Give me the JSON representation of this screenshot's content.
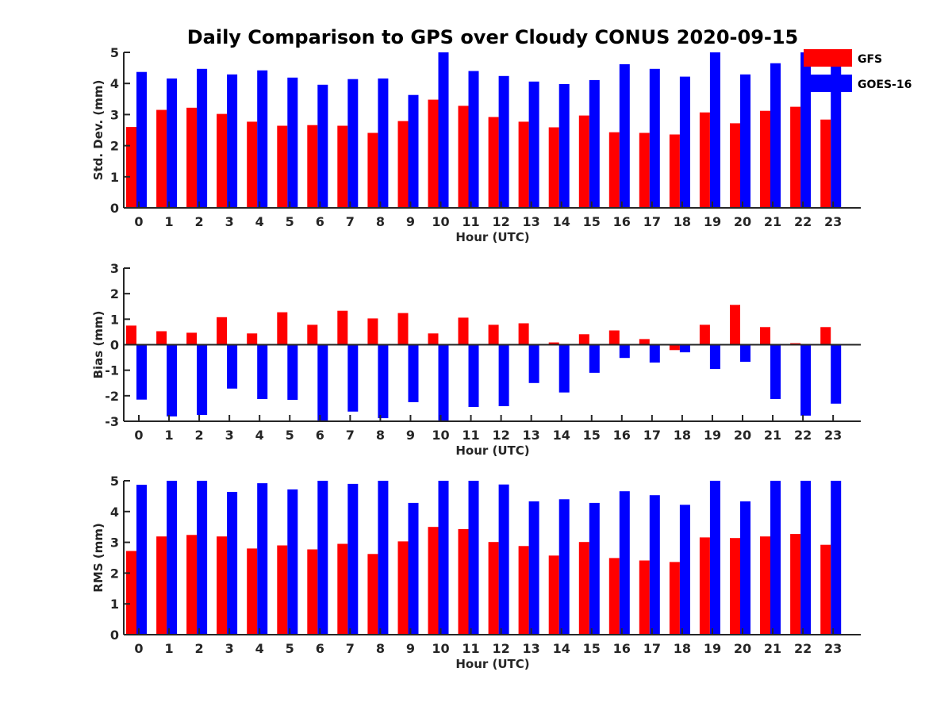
{
  "chart_data": {
    "title": "Daily Comparison to GPS over Cloudy CONUS 2020-09-15",
    "type": "bar",
    "categories": [
      "0",
      "1",
      "2",
      "3",
      "4",
      "5",
      "6",
      "7",
      "8",
      "9",
      "10",
      "11",
      "12",
      "13",
      "14",
      "15",
      "16",
      "17",
      "18",
      "19",
      "20",
      "21",
      "22",
      "23"
    ],
    "legend": {
      "placement": "top-right",
      "entries": [
        {
          "name": "GFS",
          "color": "#ff0000"
        },
        {
          "name": "GOES-16",
          "color": "#0000ff"
        }
      ]
    },
    "panels": [
      {
        "ylabel": "Std. Dev. (mm)",
        "xlabel": "Hour (UTC)",
        "ylim": [
          0,
          5
        ],
        "yticks": [
          0,
          1,
          2,
          3,
          4,
          5
        ],
        "series": [
          {
            "name": "GFS",
            "color": "#ff0000",
            "values": [
              2.6,
              3.15,
              3.22,
              3.02,
              2.77,
              2.64,
              2.66,
              2.64,
              2.41,
              2.79,
              3.48,
              3.28,
              2.92,
              2.77,
              2.59,
              2.97,
              2.43,
              2.41,
              2.36,
              3.07,
              2.72,
              3.12,
              3.25,
              2.84
            ]
          },
          {
            "name": "GOES-16",
            "color": "#0000ff",
            "values": [
              4.37,
              4.16,
              4.47,
              4.29,
              4.42,
              4.19,
              3.96,
              4.14,
              4.16,
              3.63,
              5.0,
              4.4,
              4.24,
              4.06,
              3.98,
              4.11,
              4.62,
              4.47,
              4.22,
              5.0,
              4.29,
              4.65,
              5.0,
              5.0
            ]
          }
        ]
      },
      {
        "ylabel": "Bias (mm)",
        "xlabel": "Hour (UTC)",
        "ylim": [
          -3,
          3
        ],
        "yticks": [
          -3,
          -2,
          -1,
          0,
          1,
          2,
          3
        ],
        "zero_line": true,
        "series": [
          {
            "name": "GFS",
            "color": "#ff0000",
            "values": [
              0.75,
              0.53,
              0.47,
              1.08,
              0.44,
              1.27,
              0.78,
              1.33,
              1.03,
              1.24,
              0.44,
              1.06,
              0.78,
              0.84,
              0.09,
              0.41,
              0.56,
              0.22,
              -0.21,
              0.78,
              1.56,
              0.69,
              0.06,
              0.69
            ]
          },
          {
            "name": "GOES-16",
            "color": "#0000ff",
            "values": [
              -2.15,
              -2.81,
              -2.75,
              -1.72,
              -2.13,
              -2.16,
              -3.0,
              -2.62,
              -2.88,
              -2.25,
              -3.0,
              -2.44,
              -2.41,
              -1.5,
              -1.87,
              -1.1,
              -0.52,
              -0.7,
              -0.3,
              -0.95,
              -0.67,
              -2.13,
              -2.78,
              -2.31
            ]
          }
        ]
      },
      {
        "ylabel": "RMS (mm)",
        "xlabel": "Hour (UTC)",
        "ylim": [
          0,
          5
        ],
        "yticks": [
          0,
          1,
          2,
          3,
          4,
          5
        ],
        "series": [
          {
            "name": "GFS",
            "color": "#ff0000",
            "values": [
              2.72,
              3.19,
              3.24,
              3.19,
              2.8,
              2.9,
              2.77,
              2.95,
              2.62,
              3.03,
              3.5,
              3.43,
              3.01,
              2.88,
              2.57,
              3.01,
              2.49,
              2.41,
              2.36,
              3.16,
              3.14,
              3.19,
              3.27,
              2.92
            ]
          },
          {
            "name": "GOES-16",
            "color": "#0000ff",
            "values": [
              4.87,
              5.0,
              5.0,
              4.64,
              4.92,
              4.72,
              5.0,
              4.9,
              5.0,
              4.28,
              5.0,
              5.0,
              4.88,
              4.33,
              4.4,
              4.28,
              4.66,
              4.53,
              4.22,
              5.0,
              4.33,
              5.0,
              5.0,
              5.0
            ]
          }
        ]
      }
    ]
  }
}
